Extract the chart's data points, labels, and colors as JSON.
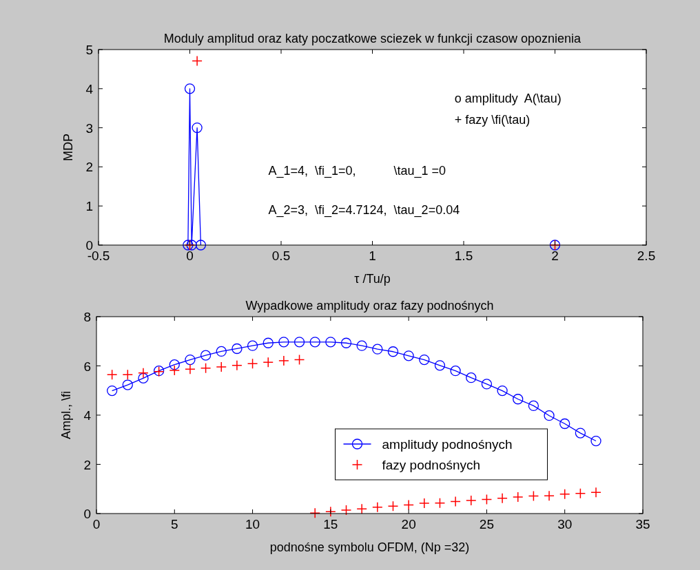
{
  "chart_data": [
    {
      "type": "line",
      "title": "Moduly amplitud oraz katy poczatkowe sciezek w funkcji czasow opoznienia",
      "xlabel": "τ /Tu/p",
      "ylabel": "MDP",
      "xlim": [
        -0.5,
        2.5
      ],
      "ylim": [
        0,
        5
      ],
      "xticks": [
        -0.5,
        0,
        0.5,
        1,
        1.5,
        2,
        2.5
      ],
      "yticks": [
        0,
        1,
        2,
        3,
        4,
        5
      ],
      "grid": false,
      "legend": false,
      "annotations": [
        "o amplitudy  A(\\tau)",
        "+ fazy \\fi(\\tau)",
        "A_1=4,  \\fi_1=0,           \\tau_1 =0",
        "A_2=3,  \\fi_2=4.7124,  \\tau_2=0.04"
      ],
      "series": [
        {
          "color": "#0000ff",
          "marker": "circle",
          "x": [
            -0.01,
            0,
            0.01,
            0.04,
            0.06
          ],
          "values": [
            0,
            4,
            0,
            3,
            0
          ]
        },
        {
          "type": "scatter",
          "color": "#0000ff",
          "marker": "circle",
          "x": [
            2
          ],
          "values": [
            0
          ]
        },
        {
          "type": "scatter",
          "color": "#ff0000",
          "marker": "cross",
          "x": [
            0,
            0.04,
            2
          ],
          "values": [
            0,
            4.71,
            0
          ]
        }
      ]
    },
    {
      "type": "line",
      "title": "Wypadkowe amplitudy oraz fazy podnośnych",
      "xlabel": "podnośne symbolu OFDM, (Np =32)",
      "ylabel": "Ampl., \\fi",
      "xlim": [
        0,
        35
      ],
      "ylim": [
        0,
        8
      ],
      "xticks": [
        0,
        5,
        10,
        15,
        20,
        25,
        30,
        35
      ],
      "yticks": [
        0,
        2,
        4,
        6,
        8
      ],
      "grid": false,
      "legend": "center",
      "x": [
        1,
        2,
        3,
        4,
        5,
        6,
        7,
        8,
        9,
        10,
        11,
        12,
        13,
        14,
        15,
        16,
        17,
        18,
        19,
        20,
        21,
        22,
        23,
        24,
        25,
        26,
        27,
        28,
        29,
        30,
        31,
        32
      ],
      "series": [
        {
          "name": "amplitudy podnośnych",
          "color": "#0000ff",
          "marker": "circle",
          "values": [
            4.99,
            5.23,
            5.5,
            5.8,
            6.05,
            6.25,
            6.43,
            6.59,
            6.7,
            6.82,
            6.93,
            6.97,
            6.97,
            6.97,
            6.97,
            6.93,
            6.82,
            6.68,
            6.58,
            6.41,
            6.25,
            6.02,
            5.8,
            5.52,
            5.26,
            4.99,
            4.65,
            4.38,
            3.98,
            3.65,
            3.27,
            2.95
          ]
        },
        {
          "type": "scatter",
          "name": "fazy podnośnych",
          "color": "#ff0000",
          "marker": "cross",
          "values": [
            5.64,
            5.64,
            5.71,
            5.77,
            5.82,
            5.87,
            5.91,
            5.96,
            6.02,
            6.09,
            6.15,
            6.21,
            6.25,
            0.02,
            0.08,
            0.14,
            0.19,
            0.26,
            0.3,
            0.35,
            0.42,
            0.43,
            0.49,
            0.53,
            0.57,
            0.62,
            0.67,
            0.71,
            0.72,
            0.79,
            0.82,
            0.86
          ]
        }
      ]
    }
  ]
}
